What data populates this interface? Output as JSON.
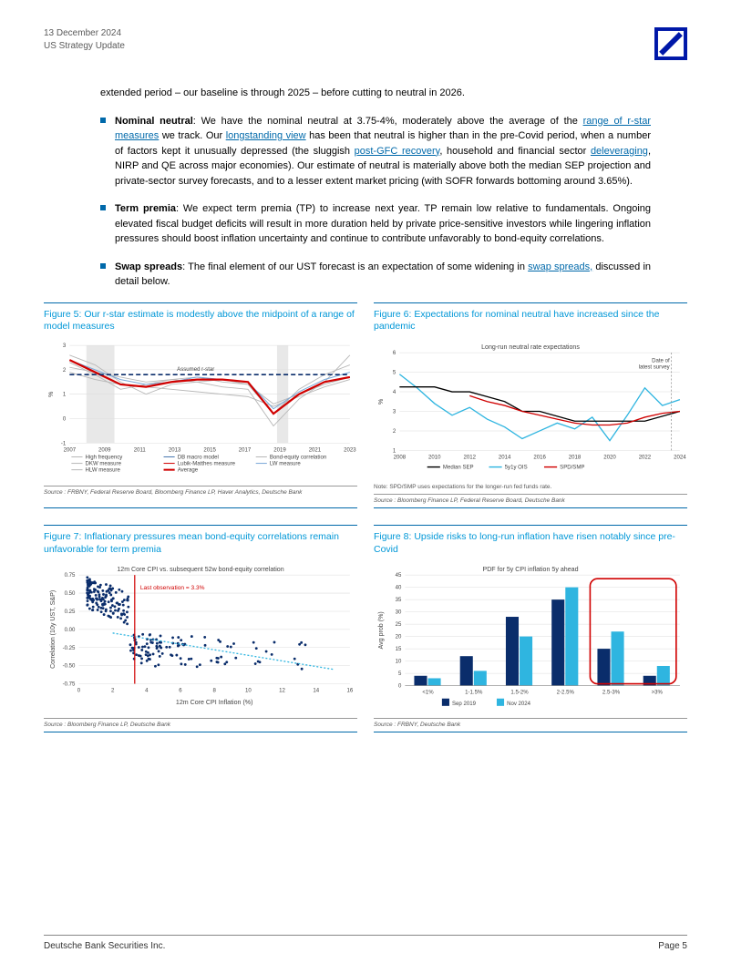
{
  "header": {
    "date": "13 December 2024",
    "title": "US Strategy Update"
  },
  "intro": "extended period – our baseline is through 2025 – before cutting to neutral in 2026.",
  "bullets": [
    {
      "lead": "Nominal neutral",
      "text_a": ": We have the nominal neutral at 3.75-4%, moderately above the average of the ",
      "link1": "range of r-star measures",
      "text_b": " we track. Our ",
      "link2": "longstanding view",
      "text_c": " has been that neutral is higher than in the pre-Covid period, when a number of factors kept it unusually depressed (the sluggish ",
      "link3": "post-GFC recovery",
      "text_d": ", household and financial sector ",
      "link4": "deleveraging",
      "text_e": ", NIRP and QE across major economies). Our estimate of neutral is materially above both the median SEP projection and private-sector survey forecasts, and to a lesser extent market pricing (with SOFR forwards bottoming around 3.65%)."
    },
    {
      "lead": "Term premia",
      "text_a": ": We expect term premia (TP) to increase next year. TP remain low relative to fundamentals. Ongoing elevated fiscal budget deficits will result in more duration held by private price-sensitive investors while lingering inflation pressures should boost inflation uncertainty and continue to contribute unfavorably to bond-equity correlations."
    },
    {
      "lead": "Swap spreads",
      "text_a": ": The final element of our UST forecast is an expectation of some widening in ",
      "link1": "swap spreads,",
      "text_b": " discussed in detail below."
    }
  ],
  "fig5": {
    "title": "Figure 5: Our r-star estimate is modestly above the midpoint of a range of model measures",
    "ylabel": "%",
    "yticks": [
      -1,
      0,
      1,
      2,
      3
    ],
    "xticks": [
      "2007",
      "2009",
      "2011",
      "2013",
      "2015",
      "2017",
      "2019",
      "2021",
      "2023"
    ],
    "assumed_label": "Assumed r-star",
    "assumed_value": 1.8,
    "colors": {
      "grey_measures": "#b8b8b8",
      "db_macro": "#4a78b0",
      "lubik": "#d00000",
      "lw": "#7aa8d8",
      "average": "#d00000",
      "dashed": "#0a2d6b",
      "shade": "#e8e8e8"
    },
    "legend": [
      {
        "label": "High frequency",
        "color": "#b8b8b8"
      },
      {
        "label": "DB macro model",
        "color": "#4a78b0"
      },
      {
        "label": "Bond-equity correlation",
        "color": "#b8b8b8"
      },
      {
        "label": "DKW measure",
        "color": "#b8b8b8"
      },
      {
        "label": "Lubik-Matthes measure",
        "color": "#d00000"
      },
      {
        "label": "LW measure",
        "color": "#7aa8d8"
      },
      {
        "label": "HLW measure",
        "color": "#b8b8b8"
      },
      {
        "label": "Average",
        "color": "#d00000"
      }
    ],
    "source": "Source : FRBNY, Federal Reserve Board, Bloomberg Finance LP, Haver Analytics, Deutsche Bank"
  },
  "fig6": {
    "title": "Figure 6: Expectations for nominal neutral have increased since the pandemic",
    "subtitle": "Long-run neutral rate expectations",
    "ylabel": "%",
    "yticks": [
      1,
      2,
      3,
      4,
      5,
      6
    ],
    "xticks": [
      "2008",
      "2010",
      "2012",
      "2014",
      "2016",
      "2018",
      "2020",
      "2022",
      "2024"
    ],
    "anno": "Date of latest survey",
    "colors": {
      "ois": "#2fb5e0",
      "sep": "#000000",
      "spd": "#d00000"
    },
    "legend": [
      {
        "label": "Median SEP",
        "color": "#000000"
      },
      {
        "label": "5y1y OIS",
        "color": "#2fb5e0"
      },
      {
        "label": "SPD/SMP",
        "color": "#d00000"
      }
    ],
    "note": "Note: SPD/SMP uses expectations for the longer-run fed funds rate.",
    "source": "Source : Bloomberg Finance LP, Federal Reserve Board, Deutsche Bank"
  },
  "fig7": {
    "title": "Figure 7: Inflationary pressures mean bond-equity correlations remain unfavorable for term premia",
    "subtitle": "12m Core CPI vs. subsequent 52w bond-equity correlation",
    "xlabel": "12m Core CPI Inflation (%)",
    "ylabel": "Correlation (10y UST, S&P)",
    "yticks": [
      -0.75,
      -0.5,
      -0.25,
      0.0,
      0.25,
      0.5,
      0.75
    ],
    "xticks": [
      0,
      2,
      4,
      6,
      8,
      10,
      12,
      14,
      16
    ],
    "anno": "Last observation = 3.3%",
    "anno_x": 3.3,
    "colors": {
      "scatter": "#0a2d6b",
      "vline": "#d00000",
      "trend": "#2fb5e0"
    },
    "source": "Source : Bloomberg Finance LP, Deutsche Bank"
  },
  "fig8": {
    "title": "Figure 8: Upside risks to long-run inflation have risen notably since pre-Covid",
    "subtitle": "PDF for 5y CPI inflation 5y ahead",
    "ylabel": "Avg prob (%)",
    "yticks": [
      0,
      5,
      10,
      15,
      20,
      25,
      30,
      35,
      40,
      45
    ],
    "categories": [
      "<1%",
      "1-1.5%",
      "1.5-2%",
      "2-2.5%",
      "2.5-3%",
      ">3%"
    ],
    "series": [
      {
        "name": "Sep 2019",
        "color": "#0a2d6b",
        "values": [
          4,
          12,
          28,
          35,
          15,
          4
        ]
      },
      {
        "name": "Nov 2024",
        "color": "#2fb5e0",
        "values": [
          3,
          6,
          20,
          40,
          22,
          8
        ]
      }
    ],
    "highlight_box_color": "#d00000",
    "source": "Source : FRBNY, Deutsche Bank"
  },
  "footer": {
    "left": "Deutsche Bank Securities Inc.",
    "right": "Page 5"
  }
}
